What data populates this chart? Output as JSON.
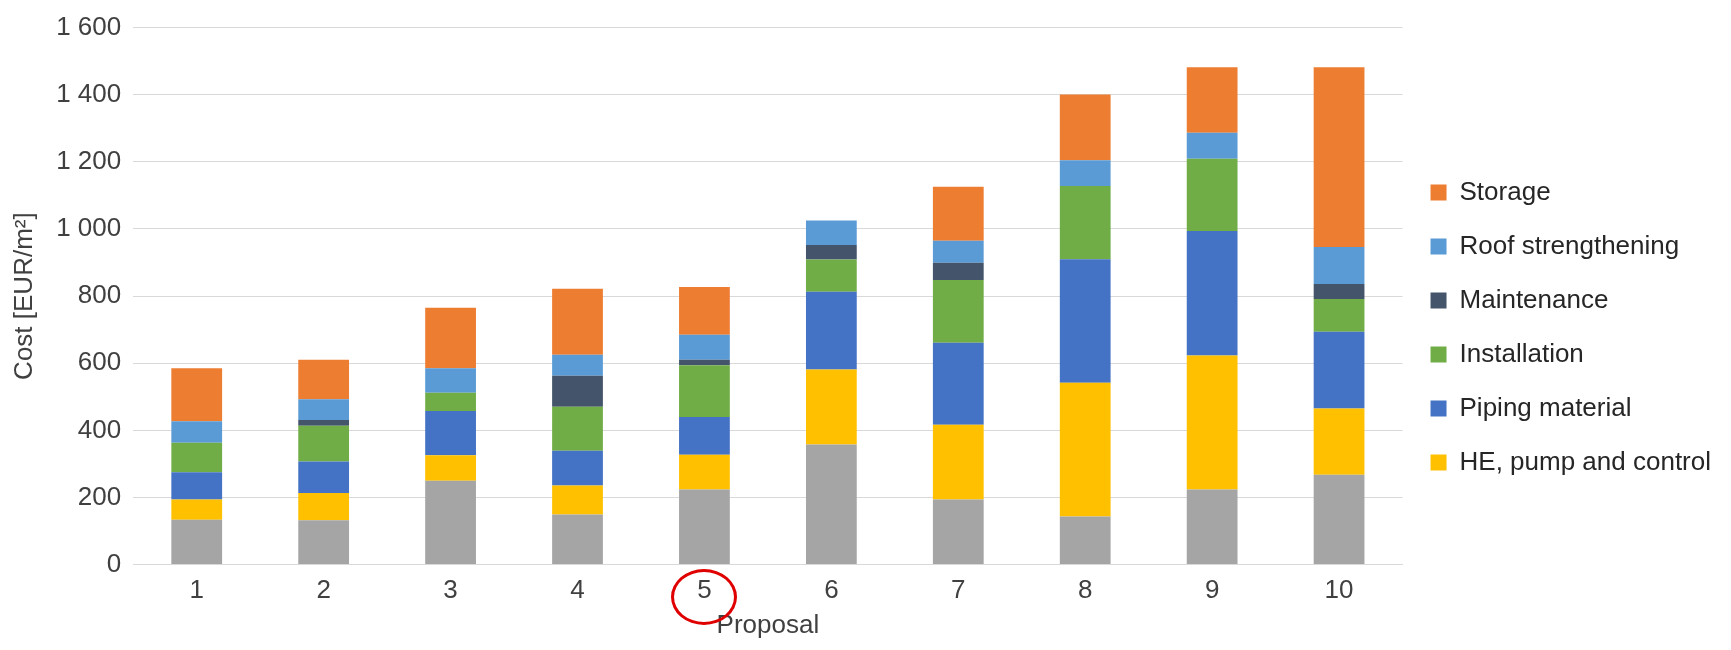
{
  "chart_data": {
    "type": "bar",
    "stacked": true,
    "xlabel": "Proposal",
    "ylabel": "Cost [EUR/m²]",
    "categories": [
      "1",
      "2",
      "3",
      "4",
      "5",
      "6",
      "7",
      "8",
      "9",
      "10"
    ],
    "ylim": [
      0,
      1600
    ],
    "yticks": [
      0,
      200,
      400,
      600,
      800,
      {
        "value": 1000,
        "label": "1 000"
      },
      {
        "value": 1200,
        "label": "1 200"
      },
      {
        "value": 1400,
        "label": "1 400"
      },
      {
        "value": 1600,
        "label": "1 600"
      }
    ],
    "grid": "y",
    "legend": "right",
    "series": [
      {
        "color": "#a5a5a5",
        "values": [
          134,
          132,
          250,
          149,
          224,
          358,
          194,
          143,
          224,
          268
        ]
      },
      {
        "name": "HE, pump and control",
        "color": "#ffc000",
        "values": [
          60,
          81,
          76,
          87,
          103,
          223,
          223,
          399,
          399,
          197
        ]
      },
      {
        "name": "Piping material",
        "color": "#4472c4",
        "values": [
          81,
          94,
          132,
          103,
          113,
          232,
          244,
          368,
          371,
          229
        ]
      },
      {
        "name": "Installation",
        "color": "#70ad47",
        "values": [
          88,
          107,
          54,
          131,
          154,
          96,
          187,
          218,
          215,
          97
        ]
      },
      {
        "name": "Maintenance",
        "color": "#44546a",
        "values": [
          0,
          17,
          0,
          93,
          16,
          43,
          51,
          0,
          0,
          45
        ]
      },
      {
        "name": "Roof strengthening",
        "color": "#5b9bd5",
        "values": [
          64,
          62,
          73,
          62,
          75,
          73,
          66,
          77,
          78,
          110
        ]
      },
      {
        "name": "Storage",
        "color": "#ed7d31",
        "values": [
          158,
          117,
          180,
          197,
          142,
          0,
          161,
          196,
          195,
          536
        ]
      }
    ]
  }
}
